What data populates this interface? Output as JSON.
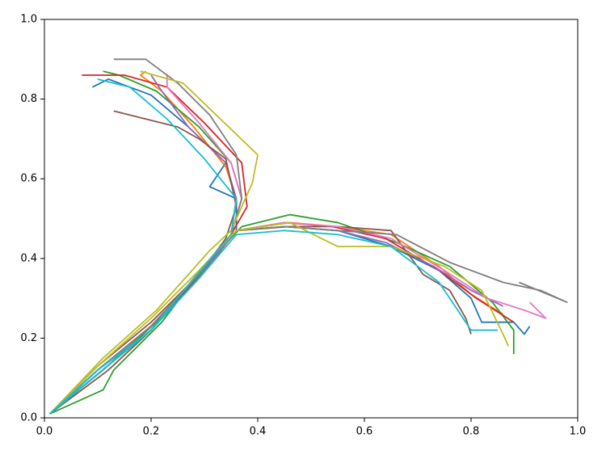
{
  "chart_data": {
    "type": "line",
    "xlim": [
      0,
      1
    ],
    "ylim": [
      0,
      1
    ],
    "xticks": [
      {
        "value": 0,
        "label": "0.0"
      },
      0.2,
      0.4,
      0.6,
      0.8,
      {
        "value": 1,
        "label": "1.0"
      }
    ],
    "yticks": [
      {
        "value": 0,
        "label": "0.0"
      },
      0.2,
      0.4,
      0.6,
      0.8,
      {
        "value": 1,
        "label": "1.0"
      }
    ],
    "grid": false,
    "series": [
      {
        "color": "#1f77b4",
        "x": [
          0.01,
          0.1,
          0.2,
          0.28,
          0.33,
          0.36,
          0.36,
          0.31,
          0.34,
          0.27,
          0.2,
          0.12,
          0.09
        ],
        "values": [
          0.01,
          0.11,
          0.22,
          0.35,
          0.43,
          0.47,
          0.55,
          0.58,
          0.64,
          0.73,
          0.81,
          0.85,
          0.83
        ]
      },
      {
        "color": "#1f77b4",
        "x": [
          0.01,
          0.1,
          0.2,
          0.29,
          0.36,
          0.45,
          0.55,
          0.65,
          0.74,
          0.8,
          0.82,
          0.88,
          0.9,
          0.91
        ],
        "values": [
          0.01,
          0.12,
          0.23,
          0.36,
          0.47,
          0.48,
          0.47,
          0.43,
          0.37,
          0.3,
          0.24,
          0.24,
          0.21,
          0.23
        ]
      },
      {
        "color": "#ff7f0e",
        "x": [
          0.01,
          0.11,
          0.2,
          0.29,
          0.35,
          0.36,
          0.34,
          0.28,
          0.22,
          0.18,
          0.19
        ],
        "values": [
          0.01,
          0.12,
          0.23,
          0.36,
          0.46,
          0.55,
          0.63,
          0.73,
          0.82,
          0.86,
          0.87
        ]
      },
      {
        "color": "#ff7f0e",
        "x": [
          0.01,
          0.1,
          0.2,
          0.28,
          0.36,
          0.46,
          0.55,
          0.65,
          0.74,
          0.8,
          0.86
        ],
        "values": [
          0.01,
          0.11,
          0.22,
          0.35,
          0.47,
          0.49,
          0.48,
          0.46,
          0.38,
          0.31,
          0.26
        ]
      },
      {
        "color": "#2ca02c",
        "x": [
          0.01,
          0.11,
          0.21,
          0.3,
          0.35,
          0.37,
          0.35,
          0.29,
          0.21,
          0.14,
          0.11
        ],
        "values": [
          0.01,
          0.12,
          0.24,
          0.37,
          0.46,
          0.55,
          0.64,
          0.73,
          0.82,
          0.86,
          0.87
        ]
      },
      {
        "color": "#2ca02c",
        "x": [
          0.01,
          0.11,
          0.13,
          0.22,
          0.3,
          0.37,
          0.46,
          0.55,
          0.66,
          0.76,
          0.84,
          0.88,
          0.88
        ],
        "values": [
          0.01,
          0.07,
          0.12,
          0.24,
          0.38,
          0.48,
          0.51,
          0.49,
          0.44,
          0.38,
          0.29,
          0.22,
          0.16
        ]
      },
      {
        "color": "#d62728",
        "x": [
          0.01,
          0.1,
          0.2,
          0.29,
          0.35,
          0.38,
          0.37,
          0.3,
          0.23,
          0.15,
          0.07
        ],
        "values": [
          0.01,
          0.12,
          0.23,
          0.36,
          0.46,
          0.53,
          0.64,
          0.74,
          0.83,
          0.86,
          0.86
        ]
      },
      {
        "color": "#d62728",
        "x": [
          0.01,
          0.1,
          0.2,
          0.29,
          0.36,
          0.45,
          0.54,
          0.64,
          0.74,
          0.81,
          0.88
        ],
        "values": [
          0.01,
          0.12,
          0.23,
          0.36,
          0.47,
          0.49,
          0.48,
          0.45,
          0.37,
          0.3,
          0.24
        ]
      },
      {
        "color": "#9467bd",
        "x": [
          0.01,
          0.1,
          0.2,
          0.28,
          0.35,
          0.36,
          0.34,
          0.27,
          0.22,
          0.2
        ],
        "values": [
          0.01,
          0.12,
          0.22,
          0.35,
          0.46,
          0.55,
          0.64,
          0.73,
          0.82,
          0.86
        ]
      },
      {
        "color": "#9467bd",
        "x": [
          0.01,
          0.1,
          0.2,
          0.29,
          0.36,
          0.45,
          0.55,
          0.64,
          0.73,
          0.8,
          0.86
        ],
        "values": [
          0.01,
          0.11,
          0.22,
          0.35,
          0.47,
          0.48,
          0.47,
          0.44,
          0.38,
          0.32,
          0.28
        ]
      },
      {
        "color": "#8c564b",
        "x": [
          0.01,
          0.12,
          0.2,
          0.28,
          0.34,
          0.36,
          0.34,
          0.29,
          0.25,
          0.13
        ],
        "values": [
          0.01,
          0.12,
          0.22,
          0.34,
          0.45,
          0.53,
          0.65,
          0.7,
          0.73,
          0.77
        ]
      },
      {
        "color": "#8c564b",
        "x": [
          0.01,
          0.1,
          0.2,
          0.29,
          0.36,
          0.46,
          0.55,
          0.65,
          0.71,
          0.76,
          0.79,
          0.8
        ],
        "values": [
          0.01,
          0.13,
          0.24,
          0.36,
          0.47,
          0.48,
          0.48,
          0.47,
          0.36,
          0.32,
          0.25,
          0.21
        ]
      },
      {
        "color": "#e377c2",
        "x": [
          0.01,
          0.1,
          0.2,
          0.29,
          0.35,
          0.37,
          0.35,
          0.29,
          0.23,
          0.23
        ],
        "values": [
          0.01,
          0.12,
          0.23,
          0.36,
          0.46,
          0.55,
          0.64,
          0.74,
          0.83,
          0.86
        ]
      },
      {
        "color": "#e377c2",
        "x": [
          0.01,
          0.1,
          0.2,
          0.29,
          0.36,
          0.45,
          0.55,
          0.65,
          0.75,
          0.83,
          0.9,
          0.94,
          0.91
        ],
        "values": [
          0.01,
          0.12,
          0.23,
          0.36,
          0.47,
          0.49,
          0.48,
          0.45,
          0.37,
          0.3,
          0.27,
          0.25,
          0.29
        ]
      },
      {
        "color": "#7f7f7f",
        "x": [
          0.01,
          0.1,
          0.2,
          0.29,
          0.35,
          0.37,
          0.36,
          0.31,
          0.25,
          0.19,
          0.13
        ],
        "values": [
          0.01,
          0.12,
          0.23,
          0.36,
          0.46,
          0.55,
          0.66,
          0.76,
          0.84,
          0.9,
          0.9
        ]
      },
      {
        "color": "#7f7f7f",
        "x": [
          0.01,
          0.1,
          0.2,
          0.29,
          0.36,
          0.45,
          0.55,
          0.66,
          0.76,
          0.86,
          0.93,
          0.98,
          0.89
        ],
        "values": [
          0.01,
          0.12,
          0.23,
          0.36,
          0.47,
          0.48,
          0.47,
          0.46,
          0.39,
          0.34,
          0.32,
          0.29,
          0.34
        ]
      },
      {
        "color": "#bcbd22",
        "x": [
          0.01,
          0.11,
          0.21,
          0.31,
          0.35,
          0.39,
          0.4,
          0.33,
          0.26,
          0.18
        ],
        "values": [
          0.01,
          0.15,
          0.27,
          0.42,
          0.47,
          0.59,
          0.66,
          0.75,
          0.84,
          0.87
        ]
      },
      {
        "color": "#bcbd22",
        "x": [
          0.01,
          0.1,
          0.2,
          0.29,
          0.36,
          0.46,
          0.55,
          0.65,
          0.75,
          0.82,
          0.86,
          0.87
        ],
        "values": [
          0.01,
          0.13,
          0.25,
          0.37,
          0.47,
          0.49,
          0.43,
          0.43,
          0.38,
          0.32,
          0.21,
          0.18
        ]
      },
      {
        "color": "#17becf",
        "x": [
          0.01,
          0.1,
          0.2,
          0.28,
          0.35,
          0.36,
          0.3,
          0.23,
          0.16,
          0.1
        ],
        "values": [
          0.01,
          0.11,
          0.22,
          0.35,
          0.46,
          0.55,
          0.65,
          0.75,
          0.83,
          0.85
        ]
      },
      {
        "color": "#17becf",
        "x": [
          0.01,
          0.1,
          0.2,
          0.29,
          0.36,
          0.45,
          0.55,
          0.65,
          0.74,
          0.8,
          0.85
        ],
        "values": [
          0.01,
          0.12,
          0.22,
          0.35,
          0.46,
          0.47,
          0.46,
          0.43,
          0.34,
          0.22,
          0.22
        ]
      }
    ]
  }
}
